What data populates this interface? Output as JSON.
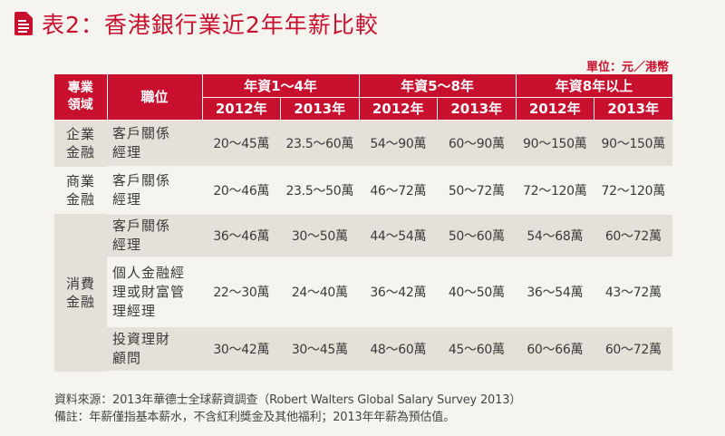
{
  "title": "表2：香港銀行業近2年年薪比較",
  "icon": "document-list-icon",
  "unit": "單位：元／港幣",
  "header": {
    "field": "專業領域",
    "position": "職位",
    "groups": [
      "年資1～4年",
      "年資5～8年",
      "年資8年以上"
    ],
    "years": [
      "2012年",
      "2013年",
      "2012年",
      "2013年",
      "2012年",
      "2013年"
    ]
  },
  "rows": [
    {
      "field": "企業金融",
      "position": "客戶關係經理",
      "values": [
        "20～45萬",
        "23.5～60萬",
        "54～90萬",
        "60～90萬",
        "90～150萬",
        "90～150萬"
      ]
    },
    {
      "field": "商業金融",
      "position": "客戶關係經理",
      "values": [
        "20～46萬",
        "23.5～50萬",
        "46～72萬",
        "50～72萬",
        "72～120萬",
        "72～120萬"
      ]
    },
    {
      "field": "消費金融",
      "position": "客戶關係經理",
      "values": [
        "36～46萬",
        "30～50萬",
        "44～54萬",
        "50～60萬",
        "54～68萬",
        "60～72萬"
      ]
    },
    {
      "field": "",
      "position": "個人金融經理或財富管理經理",
      "values": [
        "22～30萬",
        "24～40萬",
        "36～42萬",
        "40～50萬",
        "36～54萬",
        "43～72萬"
      ]
    },
    {
      "field": "",
      "position": "投資理財顧問",
      "values": [
        "30～42萬",
        "30～45萬",
        "48～60萬",
        "45～60萬",
        "60～66萬",
        "60～72萬"
      ]
    }
  ],
  "footer": {
    "source": "資料來源：2013年華德士全球薪資調查（Robert Walters Global Salary Survey 2013）",
    "note": "備註：年薪僅指基本薪水，不含紅利獎金及其他福利；2013年年薪為預估值。"
  },
  "colors": {
    "accent": "#c8102e",
    "shade": "#e5e1d8",
    "background": "#f6f4ef"
  }
}
